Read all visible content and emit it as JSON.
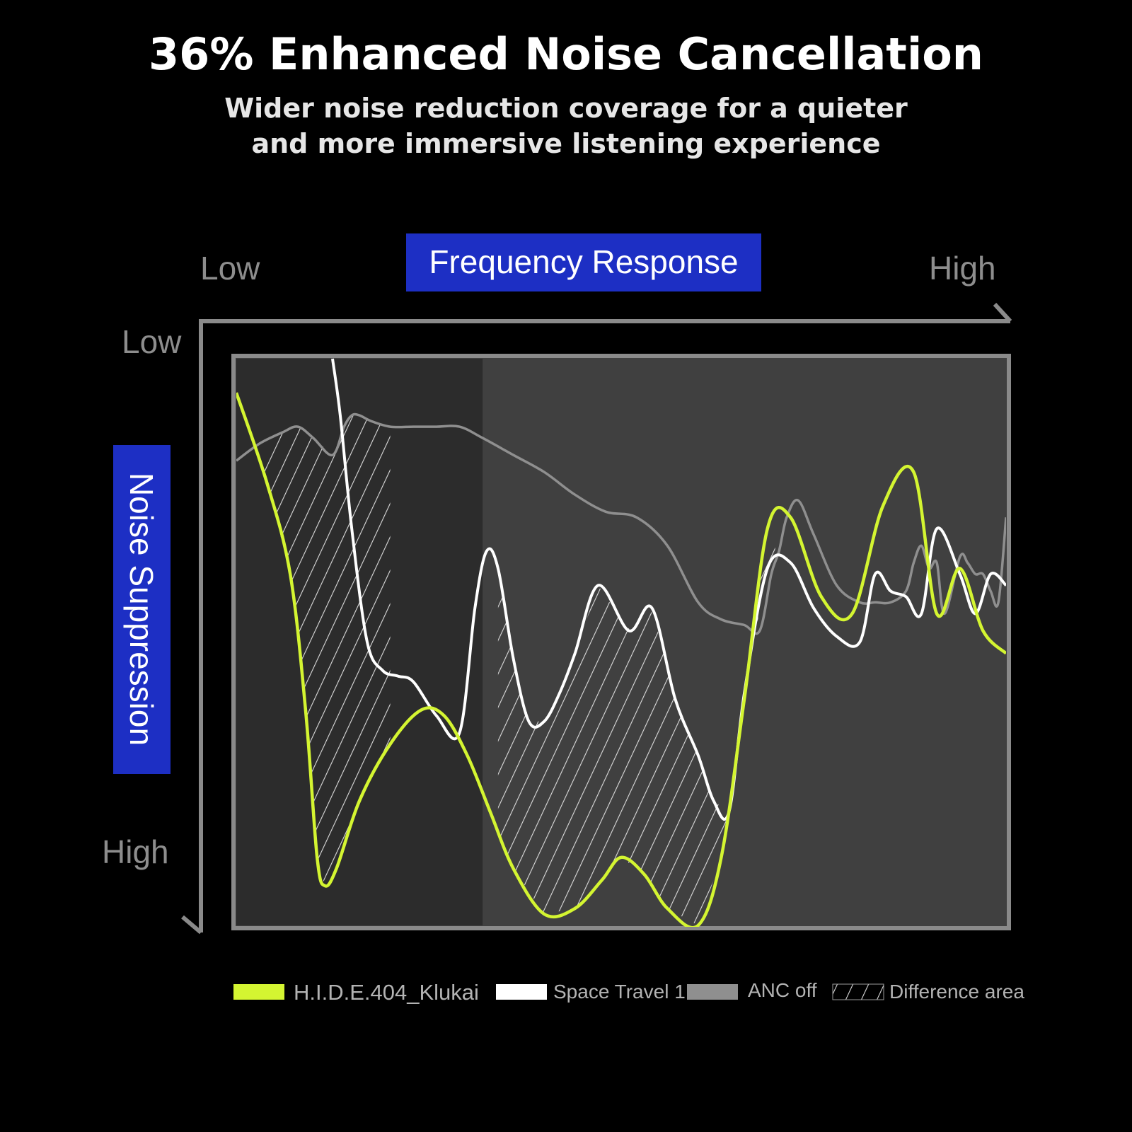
{
  "header": {
    "title": "36% Enhanced Noise Cancellation",
    "subtitle_line1": "Wider noise reduction coverage for a quieter",
    "subtitle_line2": "and more immersive listening experience"
  },
  "chart_data": {
    "type": "line",
    "x_axis": {
      "label": "Frequency Response",
      "low_label": "Low",
      "high_label": "High",
      "range": [
        0,
        100
      ]
    },
    "y_axis": {
      "label": "Noise Suppression",
      "low_label": "Low",
      "high_label": "High",
      "range": [
        0,
        100
      ],
      "inverted": true
    },
    "grid": false,
    "legend_position": "bottom",
    "highlight_band": {
      "x_start": 0,
      "x_end": 32
    },
    "series": [
      {
        "name": "H.I.D.E.404_Klukai",
        "color": "#d4f531",
        "x": [
          0,
          4,
          7,
          9,
          10.5,
          11.5,
          13,
          16,
          20,
          24,
          27,
          30,
          33,
          36,
          40,
          44,
          47.5,
          50,
          53,
          56,
          60,
          63,
          66,
          69,
          72,
          76,
          80,
          84,
          88,
          91,
          94,
          97,
          100
        ],
        "y": [
          6,
          22,
          38,
          62,
          88,
          93,
          90,
          78,
          68,
          62,
          63,
          70,
          80,
          90,
          98,
          97,
          92,
          88,
          91,
          97,
          100,
          88,
          60,
          30,
          28,
          42,
          45,
          26,
          20,
          45,
          37,
          48,
          52
        ]
      },
      {
        "name": "Space Travel 1",
        "color": "#ffffff",
        "x": [
          12.5,
          13.5,
          15,
          17,
          19,
          21,
          23,
          26,
          29,
          31,
          32.5,
          34,
          36,
          38,
          40,
          42,
          44,
          47,
          51,
          54,
          57,
          60,
          62,
          64,
          66,
          69,
          72,
          75,
          78,
          81,
          83,
          85,
          87,
          89,
          91,
          94,
          96,
          98,
          100
        ],
        "y": [
          0,
          10,
          30,
          50,
          55,
          56,
          57,
          63,
          66,
          44,
          34,
          37,
          53,
          64,
          64,
          59,
          52,
          40,
          48,
          44,
          60,
          70,
          78,
          80,
          59,
          37,
          36,
          44,
          49,
          50,
          38,
          41,
          42,
          45,
          30,
          38,
          45,
          38,
          40
        ]
      },
      {
        "name": "ANC off",
        "color": "#8f8f8f",
        "x": [
          0,
          3,
          6,
          8,
          10,
          12.5,
          14,
          15,
          16,
          17.5,
          20,
          23,
          26,
          29,
          32,
          36,
          40,
          44,
          48,
          52,
          56,
          60,
          63,
          66,
          68,
          69.5,
          70.5,
          71.5,
          73,
          75,
          78,
          81,
          83,
          85,
          87,
          88,
          89,
          90,
          91,
          92,
          94,
          95,
          96,
          97,
          98,
          99,
          100
        ],
        "y": [
          18,
          15,
          13,
          12,
          14,
          17,
          12,
          10,
          10,
          11,
          12,
          12,
          12,
          12,
          14,
          17,
          20,
          24,
          27,
          28,
          33,
          43,
          46,
          47,
          48,
          38,
          34,
          28,
          25,
          31,
          40,
          43,
          43,
          43,
          41,
          36,
          33,
          37,
          36,
          45,
          35,
          36,
          38,
          38,
          41,
          43,
          28
        ]
      }
    ],
    "difference_areas": [
      {
        "between": [
          "H.I.D.E.404_Klukai",
          "ANC off"
        ],
        "x_range": [
          3.5,
          20
        ]
      },
      {
        "between": [
          "H.I.D.E.404_Klukai",
          "Space Travel 1"
        ],
        "x_range": [
          34,
          70
        ]
      }
    ],
    "legend": [
      {
        "label": "H.I.D.E.404_Klukai",
        "swatch": "#d4f531"
      },
      {
        "label": "Space Travel 1",
        "swatch": "#ffffff"
      },
      {
        "label": "ANC off",
        "swatch": "#8f8f8f"
      },
      {
        "label": "Difference area",
        "swatch": "hatched"
      }
    ]
  }
}
